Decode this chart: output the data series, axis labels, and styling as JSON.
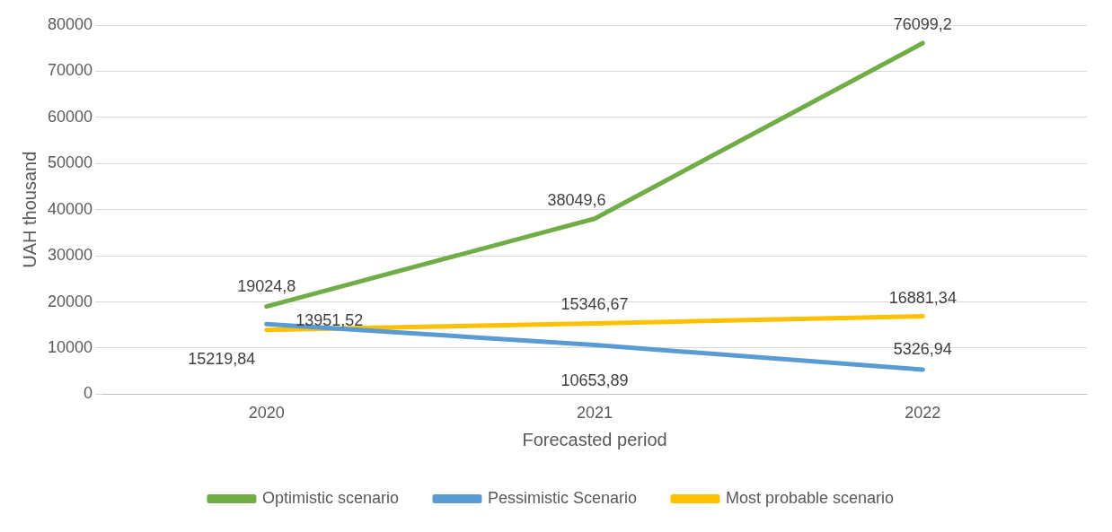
{
  "chart_data": {
    "type": "line",
    "xlabel": "Forecasted period",
    "ylabel": "UAH thousand",
    "categories": [
      "2020",
      "2021",
      "2022"
    ],
    "series": [
      {
        "name": "Optimistic scenario",
        "color": "#70ad47",
        "values": [
          19024.8,
          38049.6,
          76099.2
        ],
        "value_labels": [
          "19024,8",
          "38049,6",
          "76099,2"
        ]
      },
      {
        "name": "Pessimistic Scenario",
        "color": "#5b9bd5",
        "values": [
          15219.84,
          10653.89,
          5326.94
        ],
        "value_labels": [
          "15219,84",
          "10653,89",
          "5326,94"
        ]
      },
      {
        "name": "Most probable scenario",
        "color": "#ffc000",
        "values": [
          13951.52,
          15346.67,
          16881.34
        ],
        "value_labels": [
          "13951,52",
          "15346,67",
          "16881,34"
        ]
      }
    ],
    "ylim": [
      0,
      80000
    ],
    "yticks": [
      0,
      10000,
      20000,
      30000,
      40000,
      50000,
      60000,
      70000,
      80000
    ],
    "grid": "y",
    "legend": "bottom",
    "marker": "none",
    "line_style": "solid"
  }
}
